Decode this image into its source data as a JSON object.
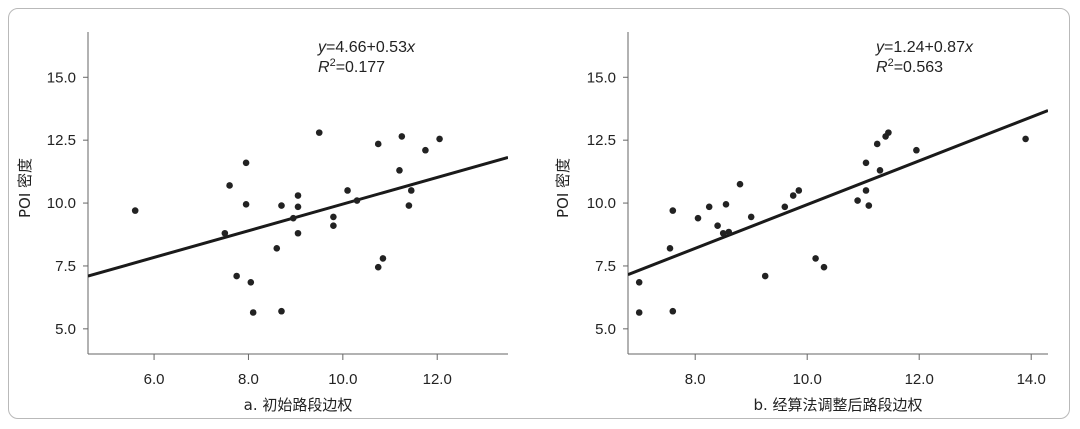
{
  "chart_data": [
    {
      "type": "scatter",
      "xlabel": "a. 初始路段边权",
      "ylabel": "POI 密度",
      "xlim": [
        4.6,
        13.5
      ],
      "ylim": [
        4.0,
        16.8
      ],
      "xticks": [
        "6.0",
        "8.0",
        "10.0",
        "12.0"
      ],
      "yticks": [
        "5.0",
        "7.5",
        "10.0",
        "12.5",
        "15.0"
      ],
      "equation": {
        "y_var": "y",
        "rhs": "=4.66+0.53",
        "x_var": "x",
        "r_label": "R",
        "r_sup": "2",
        "r_value": "=0.177"
      },
      "trendline": {
        "intercept": 4.66,
        "slope": 0.53
      },
      "points": [
        [
          5.6,
          9.7
        ],
        [
          7.5,
          8.8
        ],
        [
          7.6,
          10.7
        ],
        [
          7.75,
          7.1
        ],
        [
          7.95,
          11.6
        ],
        [
          7.95,
          9.95
        ],
        [
          8.05,
          6.85
        ],
        [
          8.1,
          5.65
        ],
        [
          8.6,
          8.2
        ],
        [
          8.7,
          9.9
        ],
        [
          8.7,
          5.7
        ],
        [
          8.95,
          9.4
        ],
        [
          9.05,
          10.3
        ],
        [
          9.05,
          9.85
        ],
        [
          9.05,
          8.8
        ],
        [
          9.5,
          12.8
        ],
        [
          9.8,
          9.45
        ],
        [
          9.8,
          9.1
        ],
        [
          10.1,
          10.5
        ],
        [
          10.3,
          10.1
        ],
        [
          10.75,
          12.35
        ],
        [
          10.75,
          7.45
        ],
        [
          10.85,
          7.8
        ],
        [
          11.2,
          11.3
        ],
        [
          11.25,
          12.65
        ],
        [
          11.4,
          9.9
        ],
        [
          11.45,
          10.5
        ],
        [
          11.75,
          12.1
        ],
        [
          12.05,
          12.55
        ]
      ]
    },
    {
      "type": "scatter",
      "xlabel": "b. 经算法调整后路段边权",
      "ylabel": "POI 密度",
      "xlim": [
        6.8,
        14.3
      ],
      "ylim": [
        4.0,
        16.8
      ],
      "xticks": [
        "8.0",
        "10.0",
        "12.0",
        "14.0"
      ],
      "yticks": [
        "5.0",
        "7.5",
        "10.0",
        "12.5",
        "15.0"
      ],
      "equation": {
        "y_var": "y",
        "rhs": "=1.24+0.87",
        "x_var": "x",
        "r_label": "R",
        "r_sup": "2",
        "r_value": "=0.563"
      },
      "trendline": {
        "intercept": 1.24,
        "slope": 0.87
      },
      "points": [
        [
          7.0,
          6.85
        ],
        [
          7.0,
          5.65
        ],
        [
          7.55,
          8.2
        ],
        [
          7.6,
          9.7
        ],
        [
          7.6,
          5.7
        ],
        [
          8.05,
          9.4
        ],
        [
          8.25,
          9.85
        ],
        [
          8.4,
          9.1
        ],
        [
          8.5,
          8.8
        ],
        [
          8.55,
          9.95
        ],
        [
          8.6,
          8.85
        ],
        [
          8.8,
          10.75
        ],
        [
          9.0,
          9.45
        ],
        [
          9.25,
          7.1
        ],
        [
          9.6,
          9.85
        ],
        [
          9.75,
          10.3
        ],
        [
          9.85,
          10.5
        ],
        [
          10.15,
          7.8
        ],
        [
          10.3,
          7.45
        ],
        [
          10.9,
          10.1
        ],
        [
          11.05,
          11.6
        ],
        [
          11.05,
          10.5
        ],
        [
          11.1,
          9.9
        ],
        [
          11.25,
          12.35
        ],
        [
          11.3,
          11.3
        ],
        [
          11.4,
          12.65
        ],
        [
          11.45,
          12.8
        ],
        [
          11.95,
          12.1
        ],
        [
          13.9,
          12.55
        ]
      ]
    }
  ]
}
